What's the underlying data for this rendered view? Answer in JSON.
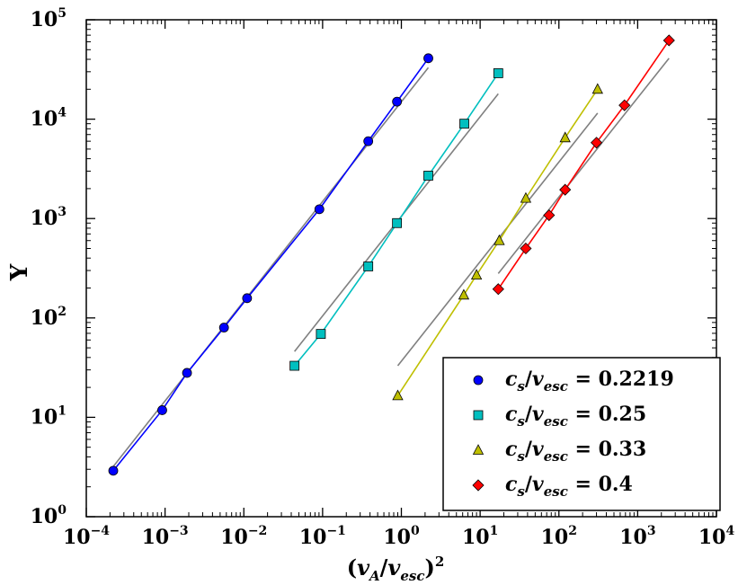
{
  "chart_data": {
    "type": "scatter",
    "x_scale": "log",
    "y_scale": "log",
    "xlim": [
      0.0001,
      10000
    ],
    "ylim": [
      1,
      100000
    ],
    "xlabel": {
      "open": "(",
      "v": "v",
      "sub1": "A",
      "slash": "/",
      "v2": "v",
      "sub2": "esc",
      "close": ")",
      "sup": "2"
    },
    "ylabel": "Υ",
    "x_ticks": [
      {
        "base": "10",
        "exp": "−4",
        "value": 0.0001
      },
      {
        "base": "10",
        "exp": "−3",
        "value": 0.001
      },
      {
        "base": "10",
        "exp": "−2",
        "value": 0.01
      },
      {
        "base": "10",
        "exp": "−1",
        "value": 0.1
      },
      {
        "base": "10",
        "exp": "0",
        "value": 1
      },
      {
        "base": "10",
        "exp": "1",
        "value": 10
      },
      {
        "base": "10",
        "exp": "2",
        "value": 100
      },
      {
        "base": "10",
        "exp": "3",
        "value": 1000
      },
      {
        "base": "10",
        "exp": "4",
        "value": 10000
      }
    ],
    "y_ticks": [
      {
        "base": "10",
        "exp": "0",
        "value": 1
      },
      {
        "base": "10",
        "exp": "1",
        "value": 10
      },
      {
        "base": "10",
        "exp": "2",
        "value": 100
      },
      {
        "base": "10",
        "exp": "3",
        "value": 1000
      },
      {
        "base": "10",
        "exp": "4",
        "value": 10000
      },
      {
        "base": "10",
        "exp": "5",
        "value": 100000
      }
    ],
    "series": [
      {
        "name": "c_s/v_esc = 0.2219",
        "legend": {
          "c": "c",
          "s": "s",
          "slash": "/",
          "v": "v",
          "esc": "esc",
          "eq": " = ",
          "value": "0.2219"
        },
        "color": "#0000ff",
        "marker": "circle",
        "x": [
          0.00022,
          0.00092,
          0.0019,
          0.0056,
          0.011,
          0.091,
          0.38,
          0.88,
          2.2
        ],
        "y": [
          2.9,
          11.8,
          28,
          80,
          158,
          1240,
          6000,
          15000,
          41000
        ],
        "fit": {
          "x": [
            0.00022,
            2.2
          ],
          "y": [
            3.2,
            33000
          ]
        }
      },
      {
        "name": "c_s/v_esc = 0.25",
        "legend": {
          "c": "c",
          "s": "s",
          "slash": "/",
          "v": "v",
          "esc": "esc",
          "eq": " = ",
          "value": "0.25"
        },
        "color": "#00bfbf",
        "marker": "square",
        "x": [
          0.044,
          0.095,
          0.38,
          0.88,
          2.2,
          6.3,
          17
        ],
        "y": [
          33,
          69,
          330,
          900,
          2700,
          9000,
          29000
        ],
        "fit": {
          "x": [
            0.044,
            17
          ],
          "y": [
            46,
            18000
          ]
        }
      },
      {
        "name": "c_s/v_esc = 0.33",
        "legend": {
          "c": "c",
          "s": "s",
          "slash": "/",
          "v": "v",
          "esc": "esc",
          "eq": " = ",
          "value": "0.33"
        },
        "color": "#bfbf00",
        "marker": "triangle",
        "x": [
          0.9,
          6.2,
          9,
          17.5,
          38,
          120,
          310
        ],
        "y": [
          16.5,
          170,
          270,
          600,
          1600,
          6500,
          20000
        ],
        "fit": {
          "x": [
            0.9,
            310
          ],
          "y": [
            33,
            11500
          ]
        }
      },
      {
        "name": "c_s/v_esc = 0.4",
        "legend": {
          "c": "c",
          "s": "s",
          "slash": "/",
          "v": "v",
          "esc": "esc",
          "eq": " = ",
          "value": "0.4"
        },
        "color": "#ff0000",
        "marker": "diamond",
        "x": [
          17,
          38,
          75,
          120,
          300,
          680,
          2500
        ],
        "y": [
          195,
          500,
          1080,
          1950,
          5800,
          13800,
          62000
        ],
        "fit": {
          "x": [
            17,
            2500
          ],
          "y": [
            280,
            41000
          ]
        }
      }
    ],
    "fit_color": "#808080",
    "legend_position": "lower-right"
  }
}
